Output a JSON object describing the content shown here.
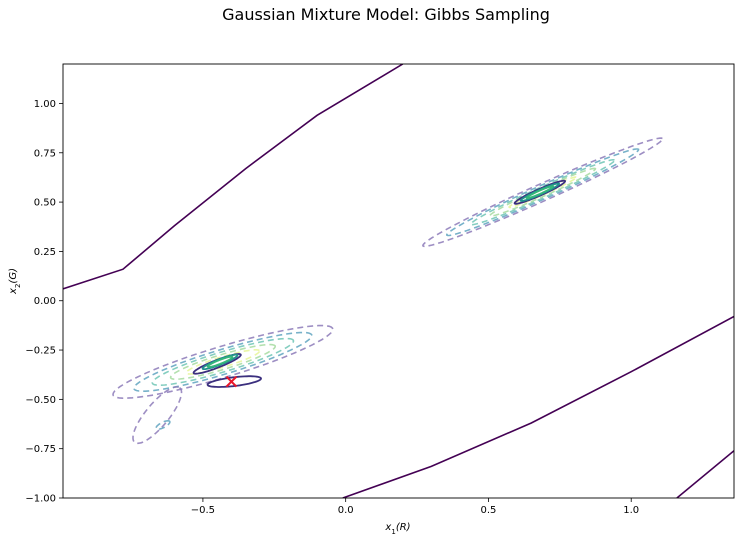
{
  "chart_data": {
    "type": "contour",
    "title": "Gaussian Mixture Model: Gibbs Sampling",
    "xlabel_base": "x",
    "xlabel_sub": "1",
    "xlabel_tail": "(R)",
    "ylabel_base": "x",
    "ylabel_sub": "2",
    "ylabel_tail": "(G)",
    "xlim": [
      -0.99,
      1.36
    ],
    "ylim": [
      -1.0,
      1.2
    ],
    "xticks": [
      -0.5,
      0.0,
      0.5,
      1.0
    ],
    "xtick_labels": [
      "−0.5",
      "0.0",
      "0.5",
      "1.0"
    ],
    "yticks": [
      -1.0,
      -0.75,
      -0.5,
      -0.25,
      0.0,
      0.25,
      0.5,
      0.75,
      1.0
    ],
    "ytick_labels": [
      "−1.00",
      "−0.75",
      "−0.50",
      "−0.25",
      "0.00",
      "0.25",
      "0.50",
      "0.75",
      "1.00"
    ],
    "grid": false,
    "components": [
      {
        "mean": [
          -0.43,
          -0.31
        ],
        "angle_deg": 24,
        "dashed_widths": [
          0.42,
          0.34,
          0.27,
          0.2,
          0.14
        ],
        "dashed_heights": [
          0.075,
          0.06,
          0.048,
          0.036,
          0.025
        ]
      },
      {
        "mean": [
          0.69,
          0.55
        ],
        "angle_deg": 33,
        "dashed_widths": [
          0.5,
          0.4,
          0.3,
          0.22,
          0.14
        ],
        "dashed_heights": [
          0.04,
          0.032,
          0.025,
          0.019,
          0.012
        ]
      }
    ],
    "solid_contours": [
      {
        "center": [
          -0.45,
          -0.32
        ],
        "rx": 0.095,
        "ry": 0.018,
        "angle_deg": 30
      },
      {
        "center": [
          -0.44,
          -0.31
        ],
        "rx": 0.07,
        "ry": 0.013,
        "angle_deg": 30
      },
      {
        "center": [
          -0.44,
          -0.31
        ],
        "rx": 0.05,
        "ry": 0.009,
        "angle_deg": 30
      },
      {
        "center": [
          -0.39,
          -0.41
        ],
        "rx": 0.095,
        "ry": 0.022,
        "angle_deg": 10
      },
      {
        "center": [
          0.68,
          0.55
        ],
        "rx": 0.105,
        "ry": 0.015,
        "angle_deg": 33
      },
      {
        "center": [
          0.68,
          0.55
        ],
        "rx": 0.08,
        "ry": 0.011,
        "angle_deg": 33
      },
      {
        "center": [
          0.68,
          0.55
        ],
        "rx": 0.055,
        "ry": 0.007,
        "angle_deg": 33
      }
    ],
    "boundary_lines": [
      {
        "points": [
          [
            -0.99,
            0.06
          ],
          [
            -0.78,
            0.16
          ],
          [
            -0.6,
            0.38
          ],
          [
            -0.35,
            0.67
          ],
          [
            -0.1,
            0.94
          ],
          [
            0.2,
            1.2
          ]
        ]
      },
      {
        "points": [
          [
            -0.01,
            -1.0
          ],
          [
            0.3,
            -0.84
          ],
          [
            0.65,
            -0.62
          ],
          [
            1.0,
            -0.36
          ],
          [
            1.36,
            -0.08
          ]
        ]
      },
      {
        "points": [
          [
            1.16,
            -1.0
          ],
          [
            1.36,
            -0.76
          ]
        ]
      }
    ],
    "marker": {
      "x": -0.4,
      "y": -0.41,
      "symbol": "x",
      "color": "#e8162a"
    },
    "colors": {
      "boundary": "#440154",
      "solid_outer": "#3b2f7e",
      "solid_mid": "#21918c",
      "solid_inner": "#35b779",
      "dashed": [
        "#8c7ab8",
        "#5fa3c0",
        "#6fc6b5",
        "#a6dba0",
        "#e6f598"
      ]
    }
  }
}
